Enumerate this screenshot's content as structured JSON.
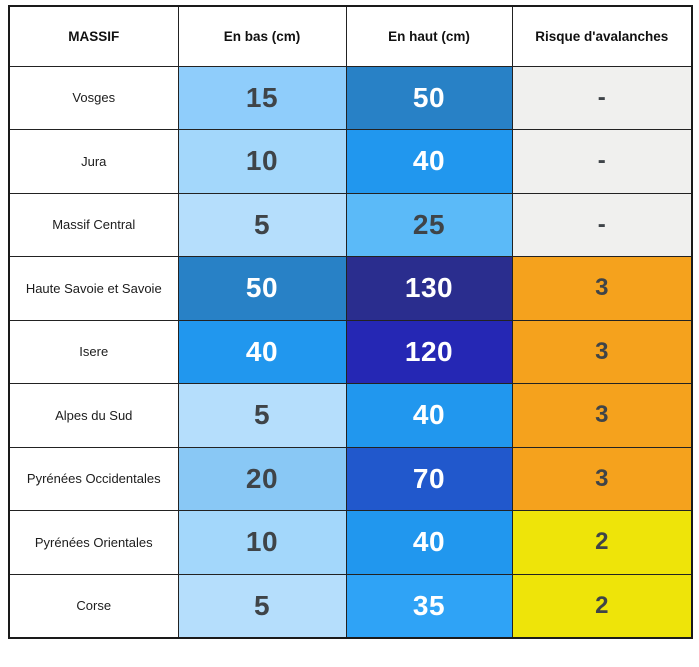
{
  "table": {
    "headers": [
      "MASSIF",
      "En bas (cm)",
      "En haut (cm)",
      "Risque d'avalanches"
    ],
    "rows": [
      {
        "massif": "Vosges",
        "en_bas": {
          "value": "15",
          "bg": "#8FCDFB",
          "fg": "#3F4448"
        },
        "en_haut": {
          "value": "50",
          "bg": "#2881C6",
          "fg": "#FFFFFF"
        },
        "risque": {
          "value": "-",
          "bg": "#F0F0EE",
          "fg": "#3F4448"
        }
      },
      {
        "massif": "Jura",
        "en_bas": {
          "value": "10",
          "bg": "#A3D7FB",
          "fg": "#3F4448"
        },
        "en_haut": {
          "value": "40",
          "bg": "#2197EE",
          "fg": "#FFFFFF"
        },
        "risque": {
          "value": "-",
          "bg": "#F0F0EE",
          "fg": "#3F4448"
        }
      },
      {
        "massif": "Massif Central",
        "en_bas": {
          "value": "5",
          "bg": "#B5DEFC",
          "fg": "#3F4448"
        },
        "en_haut": {
          "value": "25",
          "bg": "#5BBAF8",
          "fg": "#3F4448"
        },
        "risque": {
          "value": "-",
          "bg": "#F0F0EE",
          "fg": "#3F4448"
        }
      },
      {
        "massif": "Haute Savoie et Savoie",
        "en_bas": {
          "value": "50",
          "bg": "#2881C6",
          "fg": "#FFFFFF"
        },
        "en_haut": {
          "value": "130",
          "bg": "#2A2D8E",
          "fg": "#FFFFFF"
        },
        "risque": {
          "value": "3",
          "bg": "#F5A21D",
          "fg": "#3F4448"
        }
      },
      {
        "massif": "Isere",
        "en_bas": {
          "value": "40",
          "bg": "#2197EE",
          "fg": "#FFFFFF"
        },
        "en_haut": {
          "value": "120",
          "bg": "#2527B4",
          "fg": "#FFFFFF"
        },
        "risque": {
          "value": "3",
          "bg": "#F5A21D",
          "fg": "#3F4448"
        }
      },
      {
        "massif": "Alpes du Sud",
        "en_bas": {
          "value": "5",
          "bg": "#B5DEFC",
          "fg": "#3F4448"
        },
        "en_haut": {
          "value": "40",
          "bg": "#2197EE",
          "fg": "#FFFFFF"
        },
        "risque": {
          "value": "3",
          "bg": "#F5A21D",
          "fg": "#3F4448"
        }
      },
      {
        "massif": "Pyrénées Occidentales",
        "en_bas": {
          "value": "20",
          "bg": "#89C8F5",
          "fg": "#3F4448"
        },
        "en_haut": {
          "value": "70",
          "bg": "#2158CC",
          "fg": "#FFFFFF"
        },
        "risque": {
          "value": "3",
          "bg": "#F5A21D",
          "fg": "#3F4448"
        }
      },
      {
        "massif": "Pyrénées Orientales",
        "en_bas": {
          "value": "10",
          "bg": "#A3D7FB",
          "fg": "#3F4448"
        },
        "en_haut": {
          "value": "40",
          "bg": "#2197EE",
          "fg": "#FFFFFF"
        },
        "risque": {
          "value": "2",
          "bg": "#EEE409",
          "fg": "#3F4448"
        }
      },
      {
        "massif": "Corse",
        "en_bas": {
          "value": "5",
          "bg": "#B5DEFC",
          "fg": "#3F4448"
        },
        "en_haut": {
          "value": "35",
          "bg": "#2FA3F6",
          "fg": "#FFFFFF"
        },
        "risque": {
          "value": "2",
          "bg": "#EEE409",
          "fg": "#3F4448"
        }
      }
    ]
  },
  "colors": {
    "risk_none_bg": "#F0F0EE",
    "risk_2_bg": "#EEE409",
    "risk_3_bg": "#F5A21D",
    "dark_text": "#3F4448",
    "light_text": "#FFFFFF",
    "grid": "#222222"
  },
  "chart_data": {
    "type": "table",
    "title": "",
    "columns": [
      "MASSIF",
      "En bas (cm)",
      "En haut (cm)",
      "Risque d'avalanches"
    ],
    "rows": [
      [
        "Vosges",
        15,
        50,
        "-"
      ],
      [
        "Jura",
        10,
        40,
        "-"
      ],
      [
        "Massif Central",
        5,
        25,
        "-"
      ],
      [
        "Haute Savoie et Savoie",
        50,
        130,
        3
      ],
      [
        "Isere",
        40,
        120,
        3
      ],
      [
        "Alpes du Sud",
        5,
        40,
        3
      ],
      [
        "Pyrénées Occidentales",
        20,
        70,
        3
      ],
      [
        "Pyrénées Orientales",
        10,
        40,
        2
      ],
      [
        "Corse",
        5,
        35,
        2
      ]
    ],
    "layout_hints": {
      "cell_shading": "blue scale encodes snow depth (light = shallow, dark = deep)",
      "risk_shading": "gray = no risk, yellow = 2, orange = 3",
      "grid": true
    }
  }
}
